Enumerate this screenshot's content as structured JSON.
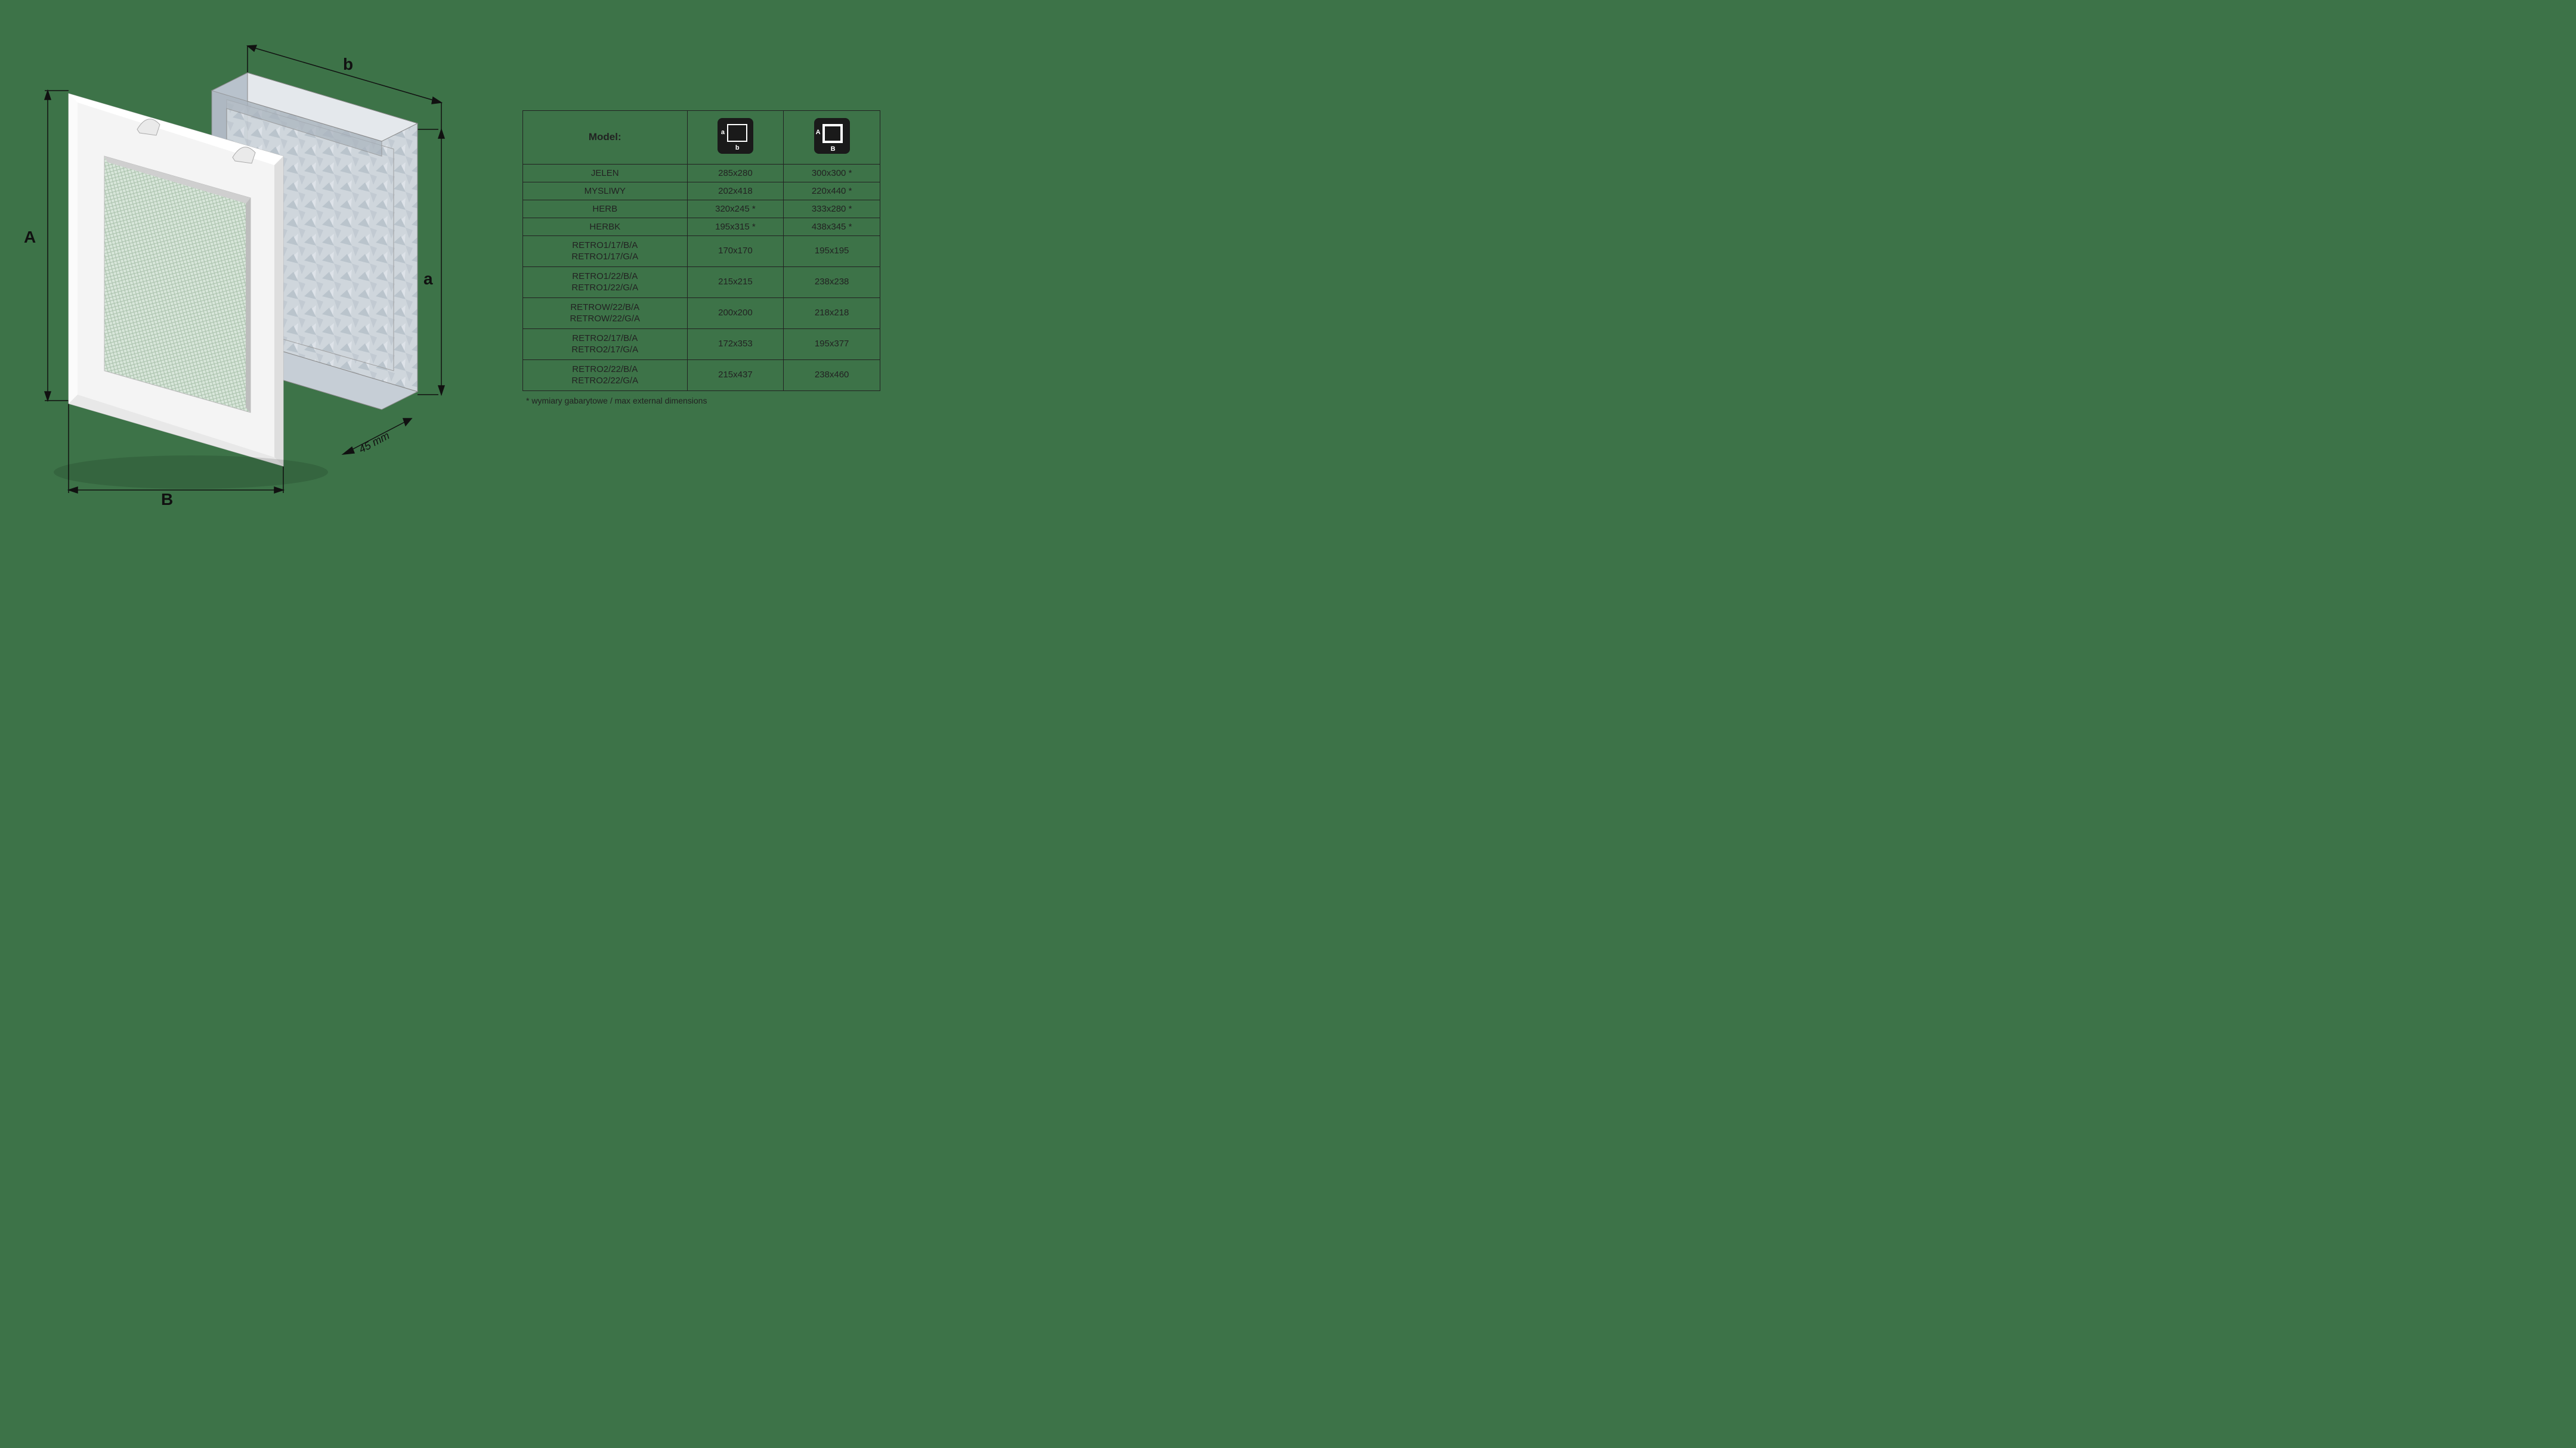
{
  "diagram": {
    "labels": {
      "A": "A",
      "B": "B",
      "a": "a",
      "b": "b",
      "depth": "45 mm"
    },
    "colors": {
      "background": "#3d7348",
      "dim_line": "#111111",
      "frame_light": "#f4f4f4",
      "frame_shadow": "#d0d0d0",
      "mesh": "#c8d8c8",
      "metal_light": "#d8dde2",
      "metal_mid": "#b8c0c8",
      "metal_dark": "#98a0a8"
    }
  },
  "table": {
    "header": {
      "model": "Model:",
      "icon_ab_a": "a",
      "icon_ab_b": "b",
      "icon_AB_a": "A",
      "icon_AB_b": "B"
    },
    "rows": [
      {
        "type": "single",
        "model": "JELEN",
        "ab": "285x280",
        "AB": "300x300 *"
      },
      {
        "type": "single",
        "model": "MYSLIWY",
        "ab": "202x418",
        "AB": "220x440 *"
      },
      {
        "type": "single",
        "model": "HERB",
        "ab": "320x245 *",
        "AB": "333x280 *"
      },
      {
        "type": "single",
        "model": "HERBK",
        "ab": "195x315 *",
        "AB": "438x345 *"
      },
      {
        "type": "double",
        "model": "RETRO1/17/B/A\nRETRO1/17/G/A",
        "ab": "170x170",
        "AB": "195x195"
      },
      {
        "type": "double",
        "model": "RETRO1/22/B/A\nRETRO1/22/G/A",
        "ab": "215x215",
        "AB": "238x238"
      },
      {
        "type": "double",
        "model": "RETROW/22/B/A\nRETROW/22/G/A",
        "ab": "200x200",
        "AB": "218x218"
      },
      {
        "type": "double",
        "model": "RETRO2/17/B/A\nRETRO2/17/G/A",
        "ab": "172x353",
        "AB": "195x377"
      },
      {
        "type": "double",
        "model": "RETRO2/22/B/A\nRETRO2/22/G/A",
        "ab": "215x437",
        "AB": "238x460"
      }
    ],
    "footnote": "* wymiary gabarytowe / max external dimensions",
    "col_widths": [
      "46%",
      "27%",
      "27%"
    ]
  }
}
